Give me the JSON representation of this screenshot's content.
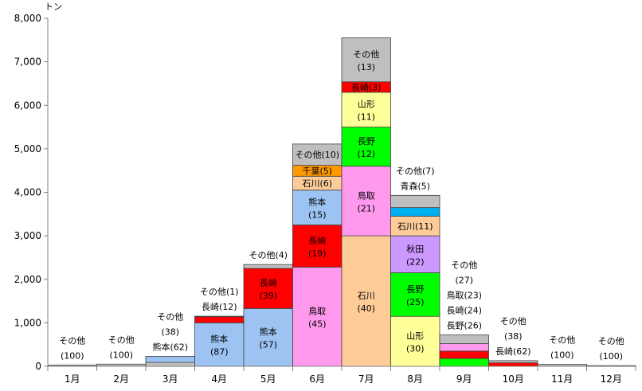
{
  "chart_data": {
    "type": "bar",
    "stacked": true,
    "title": "",
    "xlabel": "",
    "ylabel": "",
    "unit_label": "トン",
    "ylim": [
      0,
      8000
    ],
    "yticks": [
      0,
      1000,
      2000,
      3000,
      4000,
      5000,
      6000,
      7000,
      8000
    ],
    "ytick_labels": [
      "0",
      "1,000",
      "2,000",
      "3,000",
      "4,000",
      "5,000",
      "6,000",
      "7,000",
      "8,000"
    ],
    "grid": false,
    "categories": [
      "1月",
      "2月",
      "3月",
      "4月",
      "5月",
      "6月",
      "7月",
      "8月",
      "9月",
      "10月",
      "11月",
      "12月"
    ],
    "colors": {
      "熊本": "#9dc3f2",
      "長崎": "#ff0000",
      "鳥取": "#ff99ee",
      "石川": "#fdcc99",
      "千葉": "#ff9900",
      "山形": "#ffff99",
      "長野": "#00ff00",
      "秋田": "#cc99ff",
      "青森": "#00b0f0",
      "その他": "#bfbfbf"
    },
    "stacks": [
      {
        "month": "1月",
        "segments": [
          {
            "name": "その他",
            "value": 30,
            "color": "#bfbfbf"
          }
        ]
      },
      {
        "month": "2月",
        "segments": [
          {
            "name": "その他",
            "value": 50,
            "color": "#bfbfbf"
          }
        ]
      },
      {
        "month": "3月",
        "segments": [
          {
            "name": "その他",
            "value": 90,
            "color": "#bfbfbf"
          },
          {
            "name": "熊本",
            "value": 140,
            "color": "#9dc3f2"
          }
        ]
      },
      {
        "month": "4月",
        "segments": [
          {
            "name": "熊本",
            "value": 1000,
            "color": "#9dc3f2",
            "label": "熊本",
            "share": "(87)"
          },
          {
            "name": "長崎",
            "value": 140,
            "color": "#ff0000"
          },
          {
            "name": "その他",
            "value": 12,
            "color": "#bfbfbf"
          }
        ]
      },
      {
        "month": "5月",
        "segments": [
          {
            "name": "熊本",
            "value": 1330,
            "color": "#9dc3f2",
            "label": "熊本",
            "share": "(57)"
          },
          {
            "name": "長崎",
            "value": 920,
            "color": "#ff0000",
            "label": "長崎",
            "share": "(39)"
          },
          {
            "name": "その他",
            "value": 90,
            "color": "#bfbfbf"
          }
        ]
      },
      {
        "month": "6月",
        "segments": [
          {
            "name": "鳥取",
            "value": 2280,
            "color": "#ff99ee",
            "label": "鳥取",
            "share": "(45)"
          },
          {
            "name": "長崎",
            "value": 970,
            "color": "#ff0000",
            "label": "長崎",
            "share": "(19)"
          },
          {
            "name": "熊本",
            "value": 800,
            "color": "#9dc3f2",
            "label": "熊本",
            "share": "(15)"
          },
          {
            "name": "石川",
            "value": 320,
            "color": "#fdcc99",
            "label": "石川(6)"
          },
          {
            "name": "千葉",
            "value": 250,
            "color": "#ff9900",
            "label": "千葉(5)"
          },
          {
            "name": "その他",
            "value": 490,
            "color": "#bfbfbf",
            "label": "その他(10)"
          }
        ]
      },
      {
        "month": "7月",
        "segments": [
          {
            "name": "石川",
            "value": 3000,
            "color": "#fdcc99",
            "label": "石川",
            "share": "(40)"
          },
          {
            "name": "鳥取",
            "value": 1600,
            "color": "#ff99ee",
            "label": "鳥取",
            "share": "(21)"
          },
          {
            "name": "長野",
            "value": 900,
            "color": "#00ff00",
            "label": "長野",
            "share": "(12)"
          },
          {
            "name": "山形",
            "value": 800,
            "color": "#ffff99",
            "label": "山形",
            "share": "(11)"
          },
          {
            "name": "長崎",
            "value": 240,
            "color": "#ff0000",
            "label": "長崎(3)"
          },
          {
            "name": "その他",
            "value": 1010,
            "color": "#bfbfbf",
            "label": "その他",
            "share": "(13)"
          }
        ]
      },
      {
        "month": "8月",
        "segments": [
          {
            "name": "山形",
            "value": 1150,
            "color": "#ffff99",
            "label": "山形",
            "share": "(30)"
          },
          {
            "name": "長野",
            "value": 1000,
            "color": "#00ff00",
            "label": "長野",
            "share": "(25)"
          },
          {
            "name": "秋田",
            "value": 850,
            "color": "#cc99ff",
            "label": "秋田",
            "share": "(22)"
          },
          {
            "name": "石川",
            "value": 450,
            "color": "#fdcc99",
            "label": "石川(11)"
          },
          {
            "name": "青森",
            "value": 200,
            "color": "#00b0f0"
          },
          {
            "name": "その他",
            "value": 280,
            "color": "#bfbfbf"
          }
        ]
      },
      {
        "month": "9月",
        "segments": [
          {
            "name": "長野",
            "value": 180,
            "color": "#00ff00"
          },
          {
            "name": "長崎",
            "value": 170,
            "color": "#ff0000"
          },
          {
            "name": "鳥取",
            "value": 170,
            "color": "#ff99ee"
          },
          {
            "name": "その他",
            "value": 200,
            "color": "#bfbfbf"
          }
        ]
      },
      {
        "month": "10月",
        "segments": [
          {
            "name": "長崎",
            "value": 80,
            "color": "#ff0000"
          },
          {
            "name": "その他",
            "value": 50,
            "color": "#bfbfbf"
          }
        ]
      },
      {
        "month": "11月",
        "segments": [
          {
            "name": "その他",
            "value": 45,
            "color": "#bfbfbf"
          }
        ]
      },
      {
        "month": "12月",
        "segments": [
          {
            "name": "その他",
            "value": 15,
            "color": "#bfbfbf"
          }
        ]
      }
    ],
    "outside_labels": [
      {
        "month": "1月",
        "lines": [
          "その他",
          "(100)"
        ]
      },
      {
        "month": "2月",
        "lines": [
          "その他",
          "(100)"
        ]
      },
      {
        "month": "3月",
        "lines": [
          "その他",
          "(38)",
          "熊本(62)"
        ]
      },
      {
        "month": "4月",
        "lines": [
          "その他(1)",
          "長崎(12)"
        ]
      },
      {
        "month": "5月",
        "lines": [
          "その他(4)"
        ]
      },
      {
        "month": "8月",
        "lines": [
          "その他(7)",
          "青森(5)"
        ]
      },
      {
        "month": "9月",
        "lines": [
          "その他",
          "(27)",
          "鳥取(23)",
          "長崎(24)",
          "長野(26)"
        ]
      },
      {
        "month": "10月",
        "lines": [
          "その他",
          "(38)",
          "長崎(62)"
        ]
      },
      {
        "month": "11月",
        "lines": [
          "その他",
          "(100)"
        ]
      },
      {
        "month": "12月",
        "lines": [
          "その他",
          "(100)"
        ]
      }
    ]
  }
}
